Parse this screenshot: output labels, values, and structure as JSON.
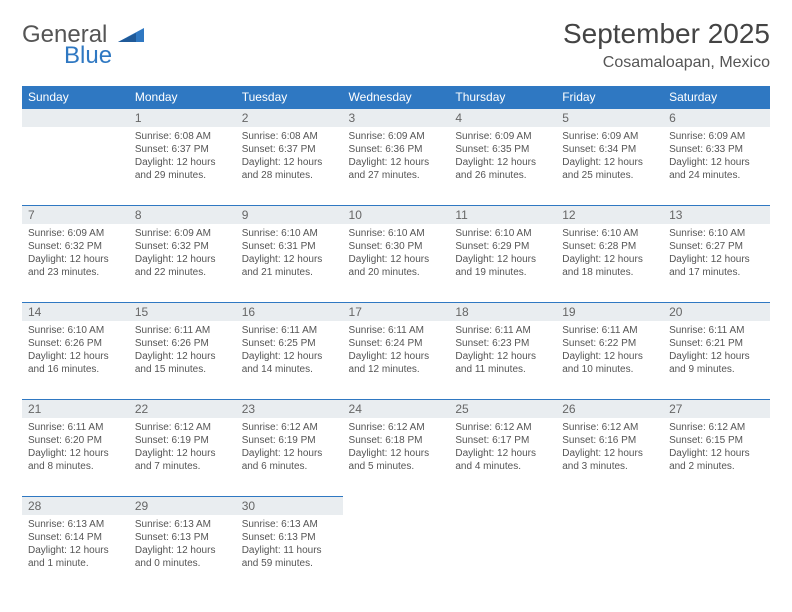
{
  "brand": {
    "line1": "General",
    "line2": "Blue",
    "accent": "#2f78c2"
  },
  "title": "September 2025",
  "subtitle": "Cosamaloapan, Mexico",
  "colors": {
    "header_bg": "#2f78c2",
    "header_text": "#ffffff",
    "daybar_bg": "#e9edf0",
    "daybar_border": "#2f78c2",
    "body_text": "#555555",
    "background": "#ffffff"
  },
  "day_headers": [
    "Sunday",
    "Monday",
    "Tuesday",
    "Wednesday",
    "Thursday",
    "Friday",
    "Saturday"
  ],
  "weeks": [
    [
      {
        "n": "",
        "sunrise": "",
        "sunset": "",
        "daylight": ""
      },
      {
        "n": "1",
        "sunrise": "Sunrise: 6:08 AM",
        "sunset": "Sunset: 6:37 PM",
        "daylight": "Daylight: 12 hours and 29 minutes."
      },
      {
        "n": "2",
        "sunrise": "Sunrise: 6:08 AM",
        "sunset": "Sunset: 6:37 PM",
        "daylight": "Daylight: 12 hours and 28 minutes."
      },
      {
        "n": "3",
        "sunrise": "Sunrise: 6:09 AM",
        "sunset": "Sunset: 6:36 PM",
        "daylight": "Daylight: 12 hours and 27 minutes."
      },
      {
        "n": "4",
        "sunrise": "Sunrise: 6:09 AM",
        "sunset": "Sunset: 6:35 PM",
        "daylight": "Daylight: 12 hours and 26 minutes."
      },
      {
        "n": "5",
        "sunrise": "Sunrise: 6:09 AM",
        "sunset": "Sunset: 6:34 PM",
        "daylight": "Daylight: 12 hours and 25 minutes."
      },
      {
        "n": "6",
        "sunrise": "Sunrise: 6:09 AM",
        "sunset": "Sunset: 6:33 PM",
        "daylight": "Daylight: 12 hours and 24 minutes."
      }
    ],
    [
      {
        "n": "7",
        "sunrise": "Sunrise: 6:09 AM",
        "sunset": "Sunset: 6:32 PM",
        "daylight": "Daylight: 12 hours and 23 minutes."
      },
      {
        "n": "8",
        "sunrise": "Sunrise: 6:09 AM",
        "sunset": "Sunset: 6:32 PM",
        "daylight": "Daylight: 12 hours and 22 minutes."
      },
      {
        "n": "9",
        "sunrise": "Sunrise: 6:10 AM",
        "sunset": "Sunset: 6:31 PM",
        "daylight": "Daylight: 12 hours and 21 minutes."
      },
      {
        "n": "10",
        "sunrise": "Sunrise: 6:10 AM",
        "sunset": "Sunset: 6:30 PM",
        "daylight": "Daylight: 12 hours and 20 minutes."
      },
      {
        "n": "11",
        "sunrise": "Sunrise: 6:10 AM",
        "sunset": "Sunset: 6:29 PM",
        "daylight": "Daylight: 12 hours and 19 minutes."
      },
      {
        "n": "12",
        "sunrise": "Sunrise: 6:10 AM",
        "sunset": "Sunset: 6:28 PM",
        "daylight": "Daylight: 12 hours and 18 minutes."
      },
      {
        "n": "13",
        "sunrise": "Sunrise: 6:10 AM",
        "sunset": "Sunset: 6:27 PM",
        "daylight": "Daylight: 12 hours and 17 minutes."
      }
    ],
    [
      {
        "n": "14",
        "sunrise": "Sunrise: 6:10 AM",
        "sunset": "Sunset: 6:26 PM",
        "daylight": "Daylight: 12 hours and 16 minutes."
      },
      {
        "n": "15",
        "sunrise": "Sunrise: 6:11 AM",
        "sunset": "Sunset: 6:26 PM",
        "daylight": "Daylight: 12 hours and 15 minutes."
      },
      {
        "n": "16",
        "sunrise": "Sunrise: 6:11 AM",
        "sunset": "Sunset: 6:25 PM",
        "daylight": "Daylight: 12 hours and 14 minutes."
      },
      {
        "n": "17",
        "sunrise": "Sunrise: 6:11 AM",
        "sunset": "Sunset: 6:24 PM",
        "daylight": "Daylight: 12 hours and 12 minutes."
      },
      {
        "n": "18",
        "sunrise": "Sunrise: 6:11 AM",
        "sunset": "Sunset: 6:23 PM",
        "daylight": "Daylight: 12 hours and 11 minutes."
      },
      {
        "n": "19",
        "sunrise": "Sunrise: 6:11 AM",
        "sunset": "Sunset: 6:22 PM",
        "daylight": "Daylight: 12 hours and 10 minutes."
      },
      {
        "n": "20",
        "sunrise": "Sunrise: 6:11 AM",
        "sunset": "Sunset: 6:21 PM",
        "daylight": "Daylight: 12 hours and 9 minutes."
      }
    ],
    [
      {
        "n": "21",
        "sunrise": "Sunrise: 6:11 AM",
        "sunset": "Sunset: 6:20 PM",
        "daylight": "Daylight: 12 hours and 8 minutes."
      },
      {
        "n": "22",
        "sunrise": "Sunrise: 6:12 AM",
        "sunset": "Sunset: 6:19 PM",
        "daylight": "Daylight: 12 hours and 7 minutes."
      },
      {
        "n": "23",
        "sunrise": "Sunrise: 6:12 AM",
        "sunset": "Sunset: 6:19 PM",
        "daylight": "Daylight: 12 hours and 6 minutes."
      },
      {
        "n": "24",
        "sunrise": "Sunrise: 6:12 AM",
        "sunset": "Sunset: 6:18 PM",
        "daylight": "Daylight: 12 hours and 5 minutes."
      },
      {
        "n": "25",
        "sunrise": "Sunrise: 6:12 AM",
        "sunset": "Sunset: 6:17 PM",
        "daylight": "Daylight: 12 hours and 4 minutes."
      },
      {
        "n": "26",
        "sunrise": "Sunrise: 6:12 AM",
        "sunset": "Sunset: 6:16 PM",
        "daylight": "Daylight: 12 hours and 3 minutes."
      },
      {
        "n": "27",
        "sunrise": "Sunrise: 6:12 AM",
        "sunset": "Sunset: 6:15 PM",
        "daylight": "Daylight: 12 hours and 2 minutes."
      }
    ],
    [
      {
        "n": "28",
        "sunrise": "Sunrise: 6:13 AM",
        "sunset": "Sunset: 6:14 PM",
        "daylight": "Daylight: 12 hours and 1 minute."
      },
      {
        "n": "29",
        "sunrise": "Sunrise: 6:13 AM",
        "sunset": "Sunset: 6:13 PM",
        "daylight": "Daylight: 12 hours and 0 minutes."
      },
      {
        "n": "30",
        "sunrise": "Sunrise: 6:13 AM",
        "sunset": "Sunset: 6:13 PM",
        "daylight": "Daylight: 11 hours and 59 minutes."
      },
      {
        "n": "",
        "sunrise": "",
        "sunset": "",
        "daylight": ""
      },
      {
        "n": "",
        "sunrise": "",
        "sunset": "",
        "daylight": ""
      },
      {
        "n": "",
        "sunrise": "",
        "sunset": "",
        "daylight": ""
      },
      {
        "n": "",
        "sunrise": "",
        "sunset": "",
        "daylight": ""
      }
    ]
  ]
}
